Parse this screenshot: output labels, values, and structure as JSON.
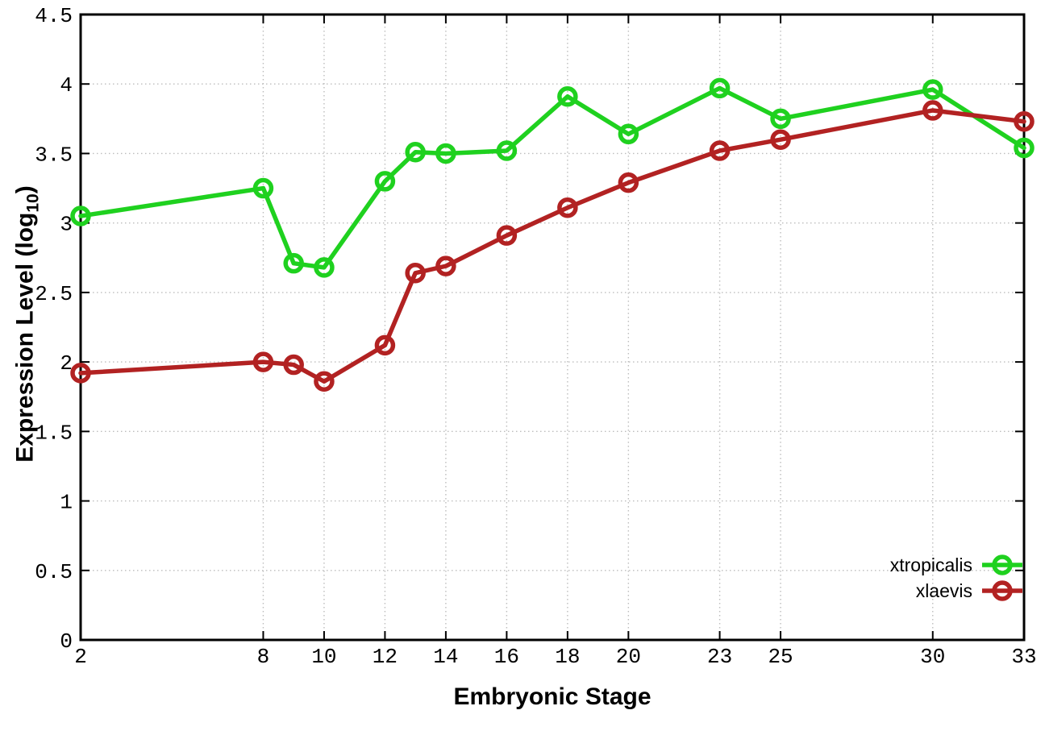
{
  "chart_data": {
    "type": "line",
    "title": "",
    "xlabel": "Embryonic Stage",
    "ylabel": {
      "main": "Expression Level (log",
      "sub": "10",
      "end": ")"
    },
    "xlim": [
      2,
      33
    ],
    "ylim": [
      0,
      4.5
    ],
    "grid": true,
    "grid_style": "dotted",
    "legend_position": "inside-bottom-right",
    "x_ticks": [
      {
        "value": 2,
        "label": "2"
      },
      {
        "value": 8,
        "label": "8"
      },
      {
        "value": 10,
        "label": "10"
      },
      {
        "value": 12,
        "label": "12"
      },
      {
        "value": 14,
        "label": "14"
      },
      {
        "value": 16,
        "label": "16"
      },
      {
        "value": 18,
        "label": "18"
      },
      {
        "value": 20,
        "label": "20"
      },
      {
        "value": 23,
        "label": "23"
      },
      {
        "value": 25,
        "label": "25"
      },
      {
        "value": 30,
        "label": "30"
      },
      {
        "value": 33,
        "label": "33"
      }
    ],
    "y_ticks": [
      {
        "value": 0,
        "label": "0"
      },
      {
        "value": 0.5,
        "label": "0.5"
      },
      {
        "value": 1,
        "label": "1"
      },
      {
        "value": 1.5,
        "label": "1.5"
      },
      {
        "value": 2,
        "label": "2"
      },
      {
        "value": 2.5,
        "label": "2.5"
      },
      {
        "value": 3,
        "label": "3"
      },
      {
        "value": 3.5,
        "label": "3.5"
      },
      {
        "value": 4,
        "label": "4"
      },
      {
        "value": 4.5,
        "label": "4.5"
      }
    ],
    "x": [
      2,
      8,
      9,
      10,
      12,
      13,
      14,
      16,
      18,
      20,
      23,
      25,
      30,
      33
    ],
    "series": [
      {
        "name": "xtropicalis",
        "color": "#1fd11f",
        "marker": "open-circle",
        "values": [
          3.05,
          3.25,
          2.71,
          2.68,
          3.3,
          3.51,
          3.5,
          3.52,
          3.91,
          3.64,
          3.97,
          3.75,
          3.96,
          3.54
        ]
      },
      {
        "name": "xlaevis",
        "color": "#b22222",
        "marker": "open-circle",
        "values": [
          1.92,
          2.0,
          1.98,
          1.86,
          2.12,
          2.64,
          2.69,
          2.91,
          3.11,
          3.29,
          3.52,
          3.6,
          3.81,
          3.73
        ]
      }
    ],
    "colors": {
      "grid": "#bdbdbd",
      "axis": "#000000",
      "background": "#ffffff"
    }
  }
}
